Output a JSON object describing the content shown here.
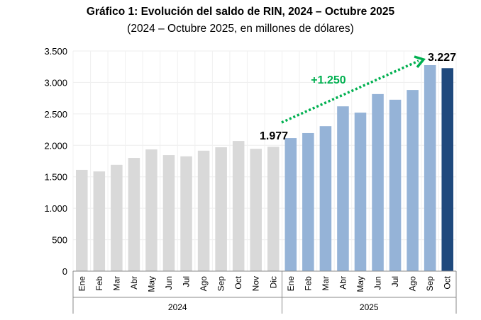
{
  "chart_data": {
    "type": "bar",
    "title": "Gráfico 1: Evolución del saldo de RIN, 2024 – Octubre 2025",
    "subtitle": "(2024 – Octubre 2025, en millones de dólares)",
    "categories": [
      "Ene",
      "Feb",
      "Mar",
      "Abr",
      "May",
      "Jun",
      "Jul",
      "Ago",
      "Sep",
      "Oct",
      "Nov",
      "Dic",
      "Ene",
      "Feb",
      "Mar",
      "Abr",
      "May",
      "Jun",
      "Jul",
      "Ago",
      "Sep",
      "Oct"
    ],
    "groups": [
      {
        "label": "2024",
        "count": 12
      },
      {
        "label": "2025",
        "count": 10
      }
    ],
    "values": [
      1610,
      1585,
      1690,
      1800,
      1935,
      1845,
      1825,
      1915,
      1970,
      2070,
      1945,
      1977,
      2115,
      2195,
      2305,
      2620,
      2520,
      2815,
      2725,
      2880,
      3275,
      3227
    ],
    "ylim": [
      0,
      3500
    ],
    "yticks": [
      0,
      500,
      1000,
      1500,
      2000,
      2500,
      3000,
      3500
    ],
    "ytick_labels": [
      "0",
      "500",
      "1.000",
      "1.500",
      "2.000",
      "2.500",
      "3.000",
      "3.500"
    ],
    "grid": true,
    "colors": {
      "2024": "#d9d9d9",
      "2025": "#95b3d7",
      "highlight": "#1f497d",
      "arrow": "#00b050"
    },
    "annotations": {
      "start_label": "1.977",
      "end_label": "3.227",
      "change_label": "+1.250"
    }
  }
}
